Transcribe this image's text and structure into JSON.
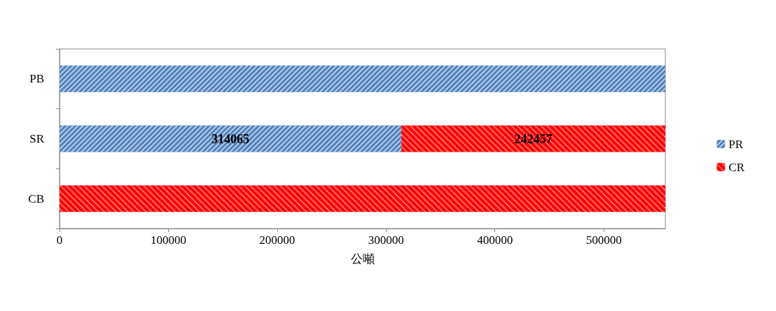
{
  "chart_data": {
    "type": "bar",
    "orientation": "horizontal",
    "stacked": true,
    "xlabel": "公噸",
    "categories": [
      "PB",
      "SR",
      "CB"
    ],
    "series": [
      {
        "name": "PR",
        "color": "#4f81bd",
        "values": [
          556522,
          314065,
          null
        ],
        "value_labels": [
          null,
          "314065",
          null
        ]
      },
      {
        "name": "CR",
        "color": "#ff0000",
        "values": [
          null,
          242457,
          556522
        ],
        "value_labels": [
          null,
          "242457",
          null
        ]
      }
    ],
    "xlim": [
      0,
      556522
    ],
    "xticks": [
      0,
      100000,
      200000,
      300000,
      400000,
      500000
    ],
    "grid": false,
    "legend": "right"
  }
}
